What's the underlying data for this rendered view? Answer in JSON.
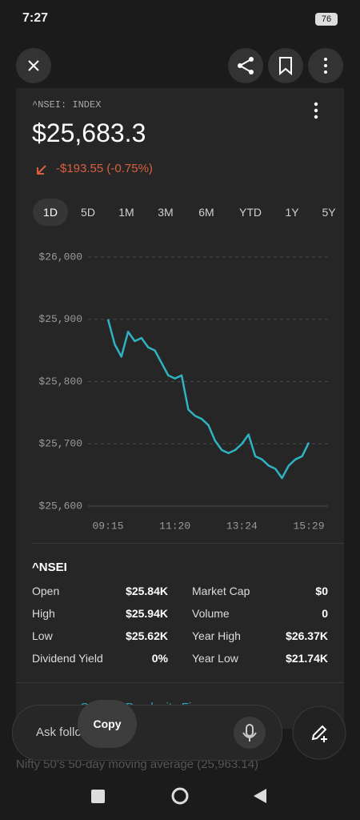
{
  "status_bar": {
    "time": "7:27",
    "battery": "76"
  },
  "card": {
    "symbol_label": "^NSEI: INDEX",
    "price": "$25,683.3",
    "change": "-$193.55 (-0.75%)",
    "tabs": [
      "1D",
      "5D",
      "1M",
      "3M",
      "6M",
      "YTD",
      "1Y",
      "5Y"
    ]
  },
  "chart_data": {
    "type": "line",
    "color": "#2fb3c3",
    "grid": true,
    "categories": [
      "09:15",
      null,
      null,
      null,
      null,
      null,
      null,
      null,
      null,
      null,
      "11:20",
      null,
      null,
      null,
      null,
      null,
      null,
      null,
      null,
      null,
      "13:24",
      null,
      null,
      null,
      null,
      null,
      null,
      null,
      null,
      null,
      "15:29"
    ],
    "values": [
      25900,
      25860,
      25840,
      25880,
      25865,
      25870,
      25855,
      25850,
      25830,
      25810,
      25805,
      25810,
      25755,
      25745,
      25740,
      25730,
      25705,
      25690,
      25685,
      25690,
      25700,
      25715,
      25680,
      25675,
      25665,
      25660,
      25645,
      25665,
      25675,
      25680,
      25702
    ],
    "ylim": [
      25600,
      26000
    ],
    "yticks": [
      {
        "value": 25600,
        "label": "$25,600"
      },
      {
        "value": 25700,
        "label": "$25,700"
      },
      {
        "value": 25800,
        "label": "$25,800"
      },
      {
        "value": 25900,
        "label": "$25,900"
      },
      {
        "value": 26000,
        "label": "$26,000"
      }
    ]
  },
  "stats": {
    "title": "^NSEI",
    "rows": [
      [
        "Open",
        "$25.84K",
        "Market Cap",
        "$0"
      ],
      [
        "High",
        "$25.94K",
        "Volume",
        "0"
      ],
      [
        "Low",
        "$25.62K",
        "Year High",
        "$26.37K"
      ],
      [
        "Dividend Yield",
        "0%",
        "Year Low",
        "$21.74K"
      ]
    ]
  },
  "link": "Open in Perplexity Finance",
  "composer": {
    "placeholder": "Ask follow-up"
  },
  "tooltip": "Copy",
  "suggestion": "Nifty 50's 50-day moving average (25,963.14)"
}
